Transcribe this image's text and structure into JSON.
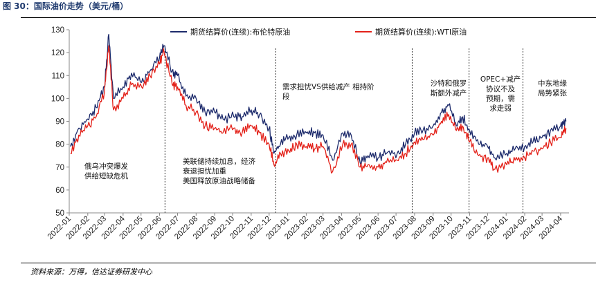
{
  "figure": {
    "title": "图 30：国际油价走势（美元/桶）",
    "source": "资料来源：万得，信达证券研发中心"
  },
  "chart_data": {
    "type": "line",
    "title": "",
    "xlabel": "",
    "ylabel": "",
    "ylim": [
      50,
      130
    ],
    "yticks": [
      50,
      60,
      70,
      80,
      90,
      100,
      110,
      120,
      130
    ],
    "xticks": [
      "2022-01",
      "2022-02",
      "2022-03",
      "2022-04",
      "2022-05",
      "2022-06",
      "2022-07",
      "2022-08",
      "2022-09",
      "2022-10",
      "2022-11",
      "2022-12",
      "2023-01",
      "2023-02",
      "2023-03",
      "2023-04",
      "2023-05",
      "2023-06",
      "2023-07",
      "2023-08",
      "2023-09",
      "2023-10",
      "2023-11",
      "2023-12",
      "2024-01",
      "2024-02",
      "2024-03",
      "2024-04"
    ],
    "grid": false,
    "legend_position": "top",
    "series": [
      {
        "name": "期货结算价(连续):布伦特原油",
        "color": "#1c2a6b",
        "x": [
          "2022-01-03",
          "2022-01-17",
          "2022-02-01",
          "2022-02-15",
          "2022-03-01",
          "2022-03-08",
          "2022-03-16",
          "2022-04-01",
          "2022-04-15",
          "2022-05-02",
          "2022-05-16",
          "2022-06-01",
          "2022-06-08",
          "2022-06-22",
          "2022-07-01",
          "2022-07-15",
          "2022-08-01",
          "2022-08-16",
          "2022-09-01",
          "2022-09-15",
          "2022-10-03",
          "2022-10-17",
          "2022-11-01",
          "2022-11-15",
          "2022-12-01",
          "2022-12-09",
          "2022-12-20",
          "2023-01-03",
          "2023-01-16",
          "2023-02-01",
          "2023-02-15",
          "2023-03-01",
          "2023-03-17",
          "2023-04-03",
          "2023-04-17",
          "2023-05-02",
          "2023-05-15",
          "2023-06-01",
          "2023-06-15",
          "2023-07-03",
          "2023-07-17",
          "2023-08-01",
          "2023-08-15",
          "2023-09-01",
          "2023-09-15",
          "2023-09-27",
          "2023-10-10",
          "2023-10-20",
          "2023-11-01",
          "2023-11-16",
          "2023-12-01",
          "2023-12-13",
          "2024-01-02",
          "2024-01-16",
          "2024-02-01",
          "2024-02-15",
          "2024-03-01",
          "2024-03-15",
          "2024-04-01",
          "2024-04-10"
        ],
        "values": [
          79,
          87,
          91,
          96,
          105,
          128,
          100,
          105,
          111,
          107,
          112,
          118,
          123,
          112,
          110,
          101,
          100,
          94,
          94,
          91,
          92,
          92,
          95,
          93,
          87,
          76,
          80,
          83,
          84,
          85,
          85,
          84,
          73,
          85,
          84,
          72,
          75,
          74,
          76,
          76,
          80,
          85,
          86,
          88,
          94,
          97,
          88,
          92,
          86,
          80,
          79,
          74,
          76,
          78,
          79,
          81,
          83,
          86,
          88,
          90
        ]
      },
      {
        "name": "期货结算价(连续):WTI原油",
        "color": "#e32119",
        "x": [
          "2022-01-03",
          "2022-01-17",
          "2022-02-01",
          "2022-02-15",
          "2022-03-01",
          "2022-03-08",
          "2022-03-16",
          "2022-04-01",
          "2022-04-15",
          "2022-05-02",
          "2022-05-16",
          "2022-06-01",
          "2022-06-08",
          "2022-06-22",
          "2022-07-01",
          "2022-07-15",
          "2022-08-01",
          "2022-08-16",
          "2022-09-01",
          "2022-09-15",
          "2022-10-03",
          "2022-10-17",
          "2022-11-01",
          "2022-11-15",
          "2022-12-01",
          "2022-12-09",
          "2022-12-20",
          "2023-01-03",
          "2023-01-16",
          "2023-02-01",
          "2023-02-15",
          "2023-03-01",
          "2023-03-17",
          "2023-04-03",
          "2023-04-17",
          "2023-05-02",
          "2023-05-15",
          "2023-06-01",
          "2023-06-15",
          "2023-07-03",
          "2023-07-17",
          "2023-08-01",
          "2023-08-15",
          "2023-09-01",
          "2023-09-15",
          "2023-09-27",
          "2023-10-10",
          "2023-10-20",
          "2023-11-01",
          "2023-11-16",
          "2023-12-01",
          "2023-12-13",
          "2024-01-02",
          "2024-01-16",
          "2024-02-01",
          "2024-02-15",
          "2024-03-01",
          "2024-03-15",
          "2024-04-01",
          "2024-04-10"
        ],
        "values": [
          76,
          84,
          88,
          92,
          103,
          123,
          95,
          100,
          106,
          105,
          110,
          115,
          121,
          106,
          105,
          97,
          94,
          88,
          87,
          85,
          87,
          85,
          88,
          85,
          80,
          71,
          76,
          77,
          80,
          79,
          78,
          79,
          68,
          80,
          80,
          70,
          71,
          70,
          72,
          73,
          76,
          81,
          82,
          84,
          90,
          93,
          86,
          88,
          81,
          75,
          74,
          69,
          71,
          73,
          74,
          77,
          78,
          81,
          83,
          87
        ]
      }
    ],
    "annotations": [
      {
        "lines": [
          "俄乌冲突爆发",
          "供给短缺危机"
        ]
      },
      {
        "lines": [
          "美联储持续加息，经济",
          "衰退担忧加重",
          "美国释放原油战略储备"
        ]
      },
      {
        "lines": [
          "需求担忧VS供给减产 相持阶",
          "段"
        ]
      },
      {
        "lines": [
          "沙特和俄罗",
          "斯额外减产"
        ]
      },
      {
        "lines": [
          "OPEC+减产",
          "协议不及",
          "预期，需",
          "求走弱"
        ]
      },
      {
        "lines": [
          "中东地缘",
          "局势紧张"
        ]
      }
    ],
    "dividers": [
      "2022-06-10",
      "2022-12-12",
      "2023-07-28",
      "2023-10-31",
      "2024-01-29"
    ]
  }
}
